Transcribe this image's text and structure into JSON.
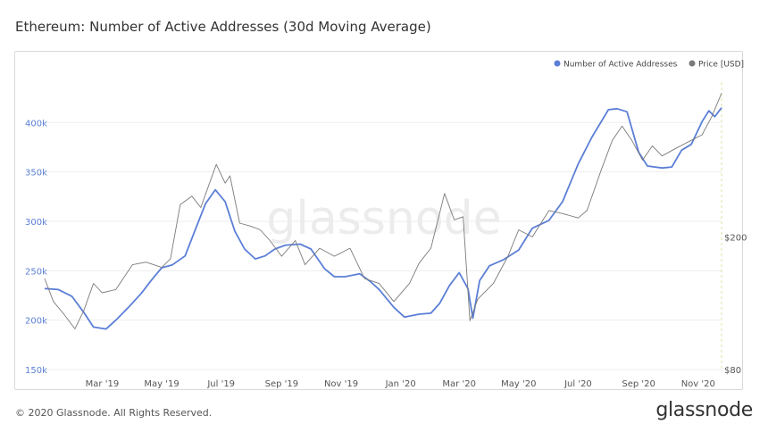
{
  "chart_title": "Ethereum: Number of Active Addresses (30d Moving Average)",
  "footer": {
    "copyright": "© 2020 Glassnode. All Rights Reserved.",
    "brand": "glassnode"
  },
  "watermark": "glassnode",
  "colors": {
    "addresses": "#5b7fd6",
    "price": "#7a7a7a",
    "axis_left": "#5b7fd6",
    "axis_right": "#555555",
    "grid": "#eeeeee"
  },
  "chart_data": {
    "type": "line",
    "title": "Ethereum: Number of Active Addresses (30d Moving Average)",
    "x_range": [
      "2019-01-01",
      "2020-11-25"
    ],
    "x_ticks": [
      {
        "date": "2019-03-01",
        "label": "Mar '19"
      },
      {
        "date": "2019-05-01",
        "label": "May '19"
      },
      {
        "date": "2019-07-01",
        "label": "Jul '19"
      },
      {
        "date": "2019-09-01",
        "label": "Sep '19"
      },
      {
        "date": "2019-11-01",
        "label": "Nov '19"
      },
      {
        "date": "2020-01-01",
        "label": "Jan '20"
      },
      {
        "date": "2020-03-01",
        "label": "Mar '20"
      },
      {
        "date": "2020-05-01",
        "label": "May '20"
      },
      {
        "date": "2020-07-01",
        "label": "Jul '20"
      },
      {
        "date": "2020-09-01",
        "label": "Sep '20"
      },
      {
        "date": "2020-11-01",
        "label": "Nov '20"
      }
    ],
    "y_left": {
      "range": [
        150000,
        450000
      ],
      "ticks": [
        {
          "value": 150000,
          "label": "150k"
        },
        {
          "value": 200000,
          "label": "200k"
        },
        {
          "value": 250000,
          "label": "250k"
        },
        {
          "value": 300000,
          "label": "300k"
        },
        {
          "value": 350000,
          "label": "350k"
        },
        {
          "value": 400000,
          "label": "400k"
        }
      ]
    },
    "y_right": {
      "scale": "log",
      "ticks": [
        {
          "value": 80,
          "label": "$80"
        },
        {
          "value": 200,
          "label": "$200"
        }
      ]
    },
    "legend": {
      "position": "top-right"
    },
    "grid": true,
    "series": [
      {
        "name": "Number of Active Addresses",
        "axis": "left",
        "points": [
          [
            "2019-01-01",
            232000
          ],
          [
            "2019-01-15",
            231000
          ],
          [
            "2019-01-29",
            224000
          ],
          [
            "2019-02-10",
            208000
          ],
          [
            "2019-02-20",
            193000
          ],
          [
            "2019-03-05",
            191000
          ],
          [
            "2019-03-15",
            200000
          ],
          [
            "2019-03-28",
            213000
          ],
          [
            "2019-04-10",
            227000
          ],
          [
            "2019-04-20",
            240000
          ],
          [
            "2019-05-01",
            253000
          ],
          [
            "2019-05-12",
            256000
          ],
          [
            "2019-05-25",
            265000
          ],
          [
            "2019-06-05",
            293000
          ],
          [
            "2019-06-15",
            318000
          ],
          [
            "2019-06-25",
            332000
          ],
          [
            "2019-07-05",
            320000
          ],
          [
            "2019-07-15",
            290000
          ],
          [
            "2019-07-25",
            272000
          ],
          [
            "2019-08-05",
            262000
          ],
          [
            "2019-08-15",
            265000
          ],
          [
            "2019-08-25",
            272000
          ],
          [
            "2019-09-05",
            276000
          ],
          [
            "2019-09-20",
            277000
          ],
          [
            "2019-10-01",
            272000
          ],
          [
            "2019-10-15",
            252000
          ],
          [
            "2019-10-25",
            244000
          ],
          [
            "2019-11-05",
            244000
          ],
          [
            "2019-11-20",
            247000
          ],
          [
            "2019-12-01",
            239000
          ],
          [
            "2019-12-10",
            231000
          ],
          [
            "2019-12-25",
            213000
          ],
          [
            "2020-01-05",
            203000
          ],
          [
            "2020-01-20",
            206000
          ],
          [
            "2020-02-01",
            207000
          ],
          [
            "2020-02-10",
            217000
          ],
          [
            "2020-02-20",
            235000
          ],
          [
            "2020-03-01",
            248000
          ],
          [
            "2020-03-10",
            232000
          ],
          [
            "2020-03-15",
            202000
          ],
          [
            "2020-03-22",
            240000
          ],
          [
            "2020-04-01",
            255000
          ],
          [
            "2020-04-15",
            261000
          ],
          [
            "2020-05-01",
            271000
          ],
          [
            "2020-05-15",
            293000
          ],
          [
            "2020-06-01",
            301000
          ],
          [
            "2020-06-15",
            320000
          ],
          [
            "2020-07-01",
            358000
          ],
          [
            "2020-07-15",
            385000
          ],
          [
            "2020-08-01",
            413000
          ],
          [
            "2020-08-10",
            414000
          ],
          [
            "2020-08-20",
            411000
          ],
          [
            "2020-09-01",
            370000
          ],
          [
            "2020-09-10",
            356000
          ],
          [
            "2020-09-25",
            354000
          ],
          [
            "2020-10-05",
            355000
          ],
          [
            "2020-10-15",
            372000
          ],
          [
            "2020-10-25",
            378000
          ],
          [
            "2020-11-05",
            401000
          ],
          [
            "2020-11-12",
            412000
          ],
          [
            "2020-11-18",
            406000
          ],
          [
            "2020-11-25",
            415000
          ]
        ]
      },
      {
        "name": "Price [USD]",
        "axis": "right",
        "points": [
          [
            "2019-01-01",
            150
          ],
          [
            "2019-01-10",
            128
          ],
          [
            "2019-01-20",
            118
          ],
          [
            "2019-02-01",
            106
          ],
          [
            "2019-02-10",
            120
          ],
          [
            "2019-02-20",
            145
          ],
          [
            "2019-03-01",
            136
          ],
          [
            "2019-03-15",
            139
          ],
          [
            "2019-04-01",
            165
          ],
          [
            "2019-04-15",
            168
          ],
          [
            "2019-05-01",
            162
          ],
          [
            "2019-05-10",
            172
          ],
          [
            "2019-05-20",
            250
          ],
          [
            "2019-06-01",
            265
          ],
          [
            "2019-06-10",
            245
          ],
          [
            "2019-06-26",
            330
          ],
          [
            "2019-07-05",
            290
          ],
          [
            "2019-07-10",
            305
          ],
          [
            "2019-07-20",
            220
          ],
          [
            "2019-08-01",
            215
          ],
          [
            "2019-08-10",
            210
          ],
          [
            "2019-08-20",
            195
          ],
          [
            "2019-09-01",
            175
          ],
          [
            "2019-09-15",
            195
          ],
          [
            "2019-09-25",
            165
          ],
          [
            "2019-10-10",
            185
          ],
          [
            "2019-10-25",
            175
          ],
          [
            "2019-11-10",
            185
          ],
          [
            "2019-11-25",
            150
          ],
          [
            "2019-12-10",
            145
          ],
          [
            "2019-12-25",
            128
          ],
          [
            "2020-01-10",
            145
          ],
          [
            "2020-01-20",
            167
          ],
          [
            "2020-02-01",
            185
          ],
          [
            "2020-02-15",
            270
          ],
          [
            "2020-02-25",
            225
          ],
          [
            "2020-03-05",
            230
          ],
          [
            "2020-03-12",
            112
          ],
          [
            "2020-03-20",
            130
          ],
          [
            "2020-04-05",
            145
          ],
          [
            "2020-04-20",
            175
          ],
          [
            "2020-05-01",
            210
          ],
          [
            "2020-05-15",
            200
          ],
          [
            "2020-06-01",
            240
          ],
          [
            "2020-06-15",
            235
          ],
          [
            "2020-07-01",
            228
          ],
          [
            "2020-07-10",
            240
          ],
          [
            "2020-07-25",
            320
          ],
          [
            "2020-08-05",
            390
          ],
          [
            "2020-08-15",
            430
          ],
          [
            "2020-08-25",
            390
          ],
          [
            "2020-09-05",
            340
          ],
          [
            "2020-09-15",
            375
          ],
          [
            "2020-09-25",
            350
          ],
          [
            "2020-10-10",
            370
          ],
          [
            "2020-10-25",
            390
          ],
          [
            "2020-11-05",
            405
          ],
          [
            "2020-11-15",
            460
          ],
          [
            "2020-11-25",
            540
          ]
        ]
      }
    ]
  }
}
